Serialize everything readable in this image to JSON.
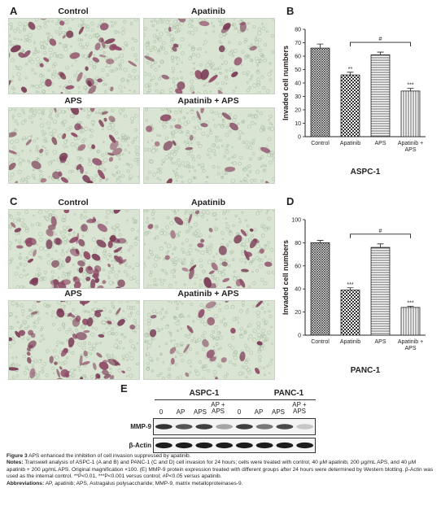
{
  "panels": {
    "A": {
      "letter": "A",
      "labels": [
        "Control",
        "Apatinib",
        "APS",
        "Apatinib + APS"
      ],
      "density": [
        0.35,
        0.18,
        0.3,
        0.12
      ]
    },
    "C": {
      "letter": "C",
      "labels": [
        "Control",
        "Apatinib",
        "APS",
        "Apatinib + APS"
      ],
      "density": [
        0.55,
        0.25,
        0.5,
        0.15
      ]
    },
    "B": {
      "letter": "B"
    },
    "D": {
      "letter": "D"
    },
    "E": {
      "letter": "E"
    }
  },
  "chart_data": [
    {
      "type": "bar",
      "panel": "B",
      "ylabel": "Invaded cell numbers",
      "xtitle": "ASPC-1",
      "categories": [
        "Control",
        "Apatinib",
        "APS",
        "Apatinib + APS"
      ],
      "values": [
        66,
        46,
        61,
        34
      ],
      "errors": [
        3,
        2,
        2,
        2
      ],
      "significance": [
        "",
        "**",
        "",
        "***"
      ],
      "bracket_label": "#",
      "ylim": [
        0,
        80
      ],
      "yticks": [
        0,
        10,
        20,
        30,
        40,
        50,
        60,
        70,
        80
      ]
    },
    {
      "type": "bar",
      "panel": "D",
      "ylabel": "Invaded cell numbers",
      "xtitle": "PANC-1",
      "categories": [
        "Control",
        "Apatinib",
        "APS",
        "Apatinib + APS"
      ],
      "values": [
        80,
        39,
        76,
        24
      ],
      "errors": [
        2,
        2,
        3,
        1
      ],
      "significance": [
        "",
        "***",
        "",
        "***"
      ],
      "bracket_label": "#",
      "ylim": [
        0,
        100
      ],
      "yticks": [
        0,
        20,
        40,
        60,
        80,
        100
      ]
    }
  ],
  "western_blot": {
    "cell_lines": [
      "ASPC-1",
      "PANC-1"
    ],
    "lanes": [
      "0",
      "AP",
      "APS",
      "AP + APS",
      "0",
      "AP",
      "APS",
      "AP + APS"
    ],
    "proteins": [
      "MMP-9",
      "β-Actin"
    ],
    "mmp9_intensity": [
      0.85,
      0.7,
      0.8,
      0.35,
      0.8,
      0.55,
      0.75,
      0.2
    ],
    "actin_intensity": [
      0.95,
      0.95,
      0.95,
      0.95,
      0.95,
      0.95,
      0.95,
      0.95
    ]
  },
  "caption": {
    "title_bold": "Figure 3",
    "title_rest": " APS enhanced the inhibition of cell invasion suppressed by apatinib.",
    "notes_label": "Notes:",
    "notes_text": " Transwell analysis of ASPC-1 (A and B) and PANC-1 (C and D) cell invasion for 24 hours; cells were treated with control, 40 µM apatinib, 200 µg/mL APS, and 40 µM apatinib + 200 µg/mL APS. Original magnification ×100. (E) MMP-9 protein expression treated with different groups after 24 hours were determined by Western blotting. β-Actin was used as the internal control. **P<0.01, ***P<0.001 versus control; #P<0.05 versus apatinib.",
    "abbrev_label": "Abbreviations:",
    "abbrev_text": " AP, apatinib; APS, Astragalus polysaccharide; MMP-9, matrix metalloproteinases-9."
  }
}
